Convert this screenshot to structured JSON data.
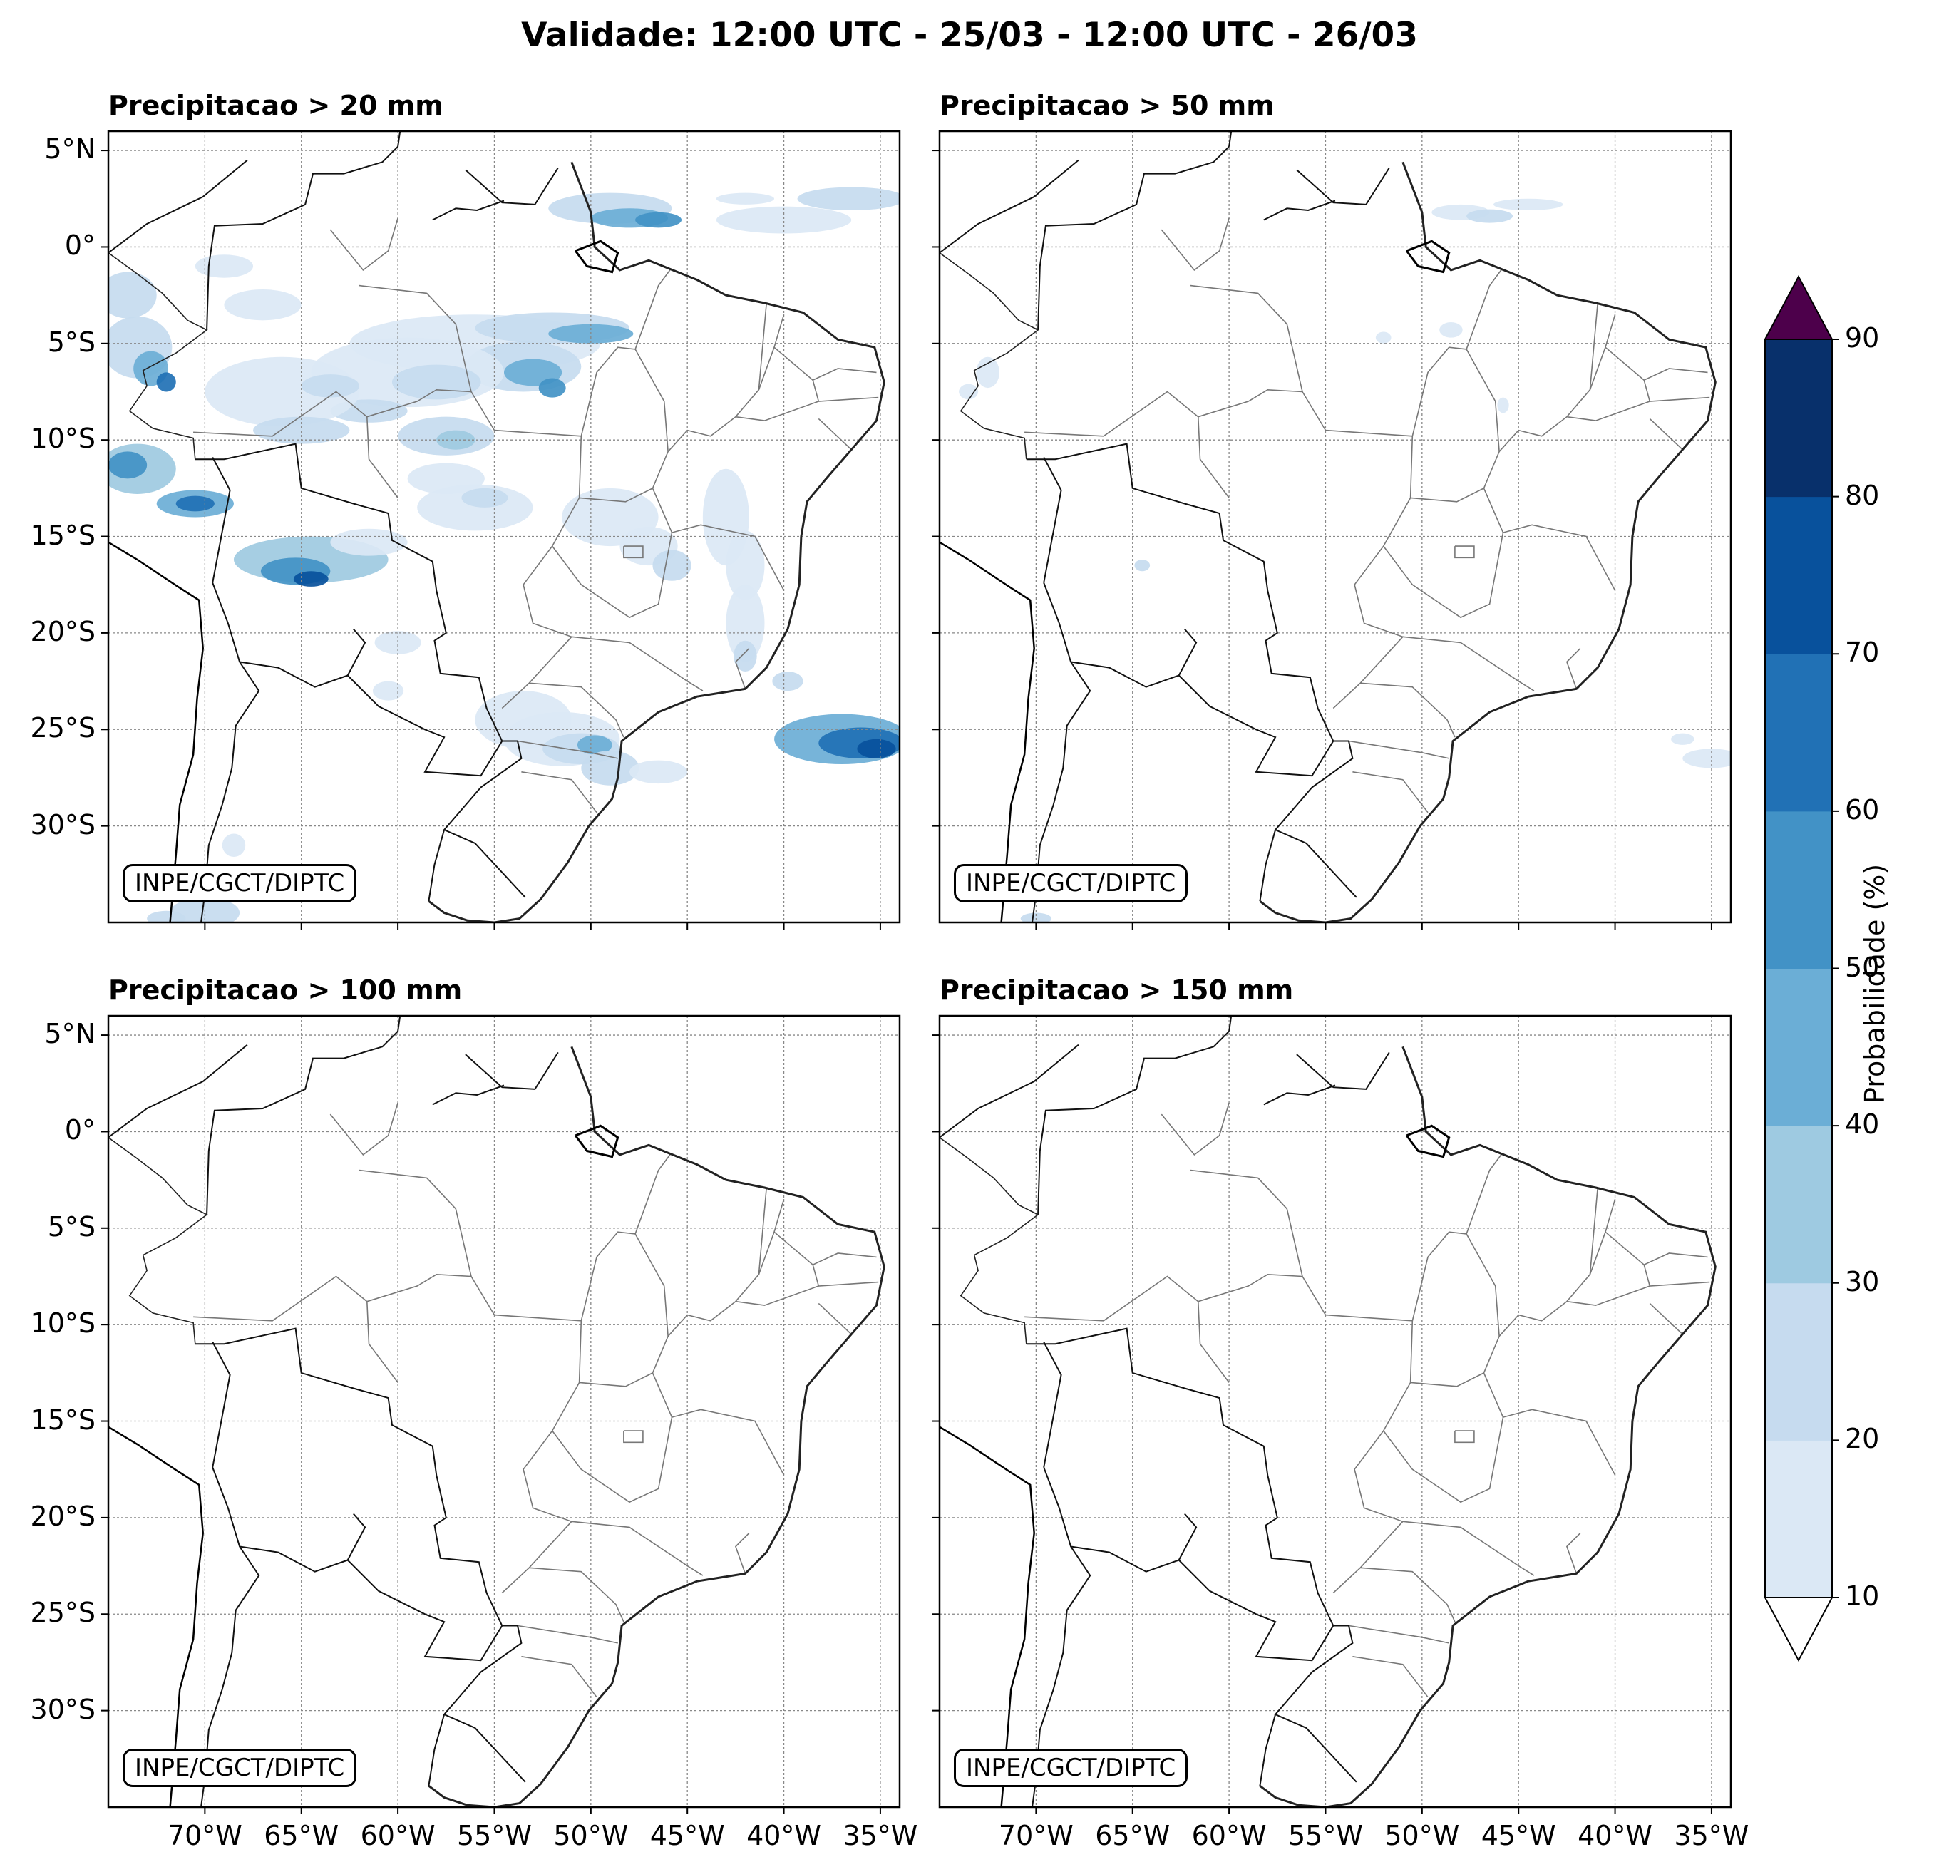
{
  "title": "Validade: 12:00 UTC - 25/03 - 12:00 UTC - 26/03",
  "panels": [
    {
      "title": "Precipitacao > 20 mm",
      "credit": "INPE/CGCT/DIPTC",
      "intensity": "high"
    },
    {
      "title": "Precipitacao > 50 mm",
      "credit": "INPE/CGCT/DIPTC",
      "intensity": "low"
    },
    {
      "title": "Precipitacao > 100 mm",
      "credit": "INPE/CGCT/DIPTC",
      "intensity": "none"
    },
    {
      "title": "Precipitacao > 150 mm",
      "credit": "INPE/CGCT/DIPTC",
      "intensity": "none"
    }
  ],
  "map_extent": {
    "lon": [
      -75,
      -34
    ],
    "lat": [
      -35,
      6
    ]
  },
  "lat_ticks": [
    {
      "value": 5,
      "label": "5°N"
    },
    {
      "value": 0,
      "label": "0°"
    },
    {
      "value": -5,
      "label": "5°S"
    },
    {
      "value": -10,
      "label": "10°S"
    },
    {
      "value": -15,
      "label": "15°S"
    },
    {
      "value": -20,
      "label": "20°S"
    },
    {
      "value": -25,
      "label": "25°S"
    },
    {
      "value": -30,
      "label": "30°S"
    }
  ],
  "lon_ticks": [
    {
      "value": -70,
      "label": "70°W"
    },
    {
      "value": -65,
      "label": "65°W"
    },
    {
      "value": -60,
      "label": "60°W"
    },
    {
      "value": -55,
      "label": "55°W"
    },
    {
      "value": -50,
      "label": "50°W"
    },
    {
      "value": -45,
      "label": "45°W"
    },
    {
      "value": -40,
      "label": "40°W"
    },
    {
      "value": -35,
      "label": "35°W"
    }
  ],
  "colorbar": {
    "label": "Probabilidade (%)",
    "levels": [
      10,
      20,
      30,
      40,
      50,
      60,
      70,
      80,
      90
    ],
    "colors": [
      "#dbe8f5",
      "#c6dbef",
      "#9ecae1",
      "#6baed6",
      "#4292c6",
      "#2171b5",
      "#08519c",
      "#08306b"
    ],
    "over_color": "#4d004b",
    "under_color": "#ffffff"
  }
}
